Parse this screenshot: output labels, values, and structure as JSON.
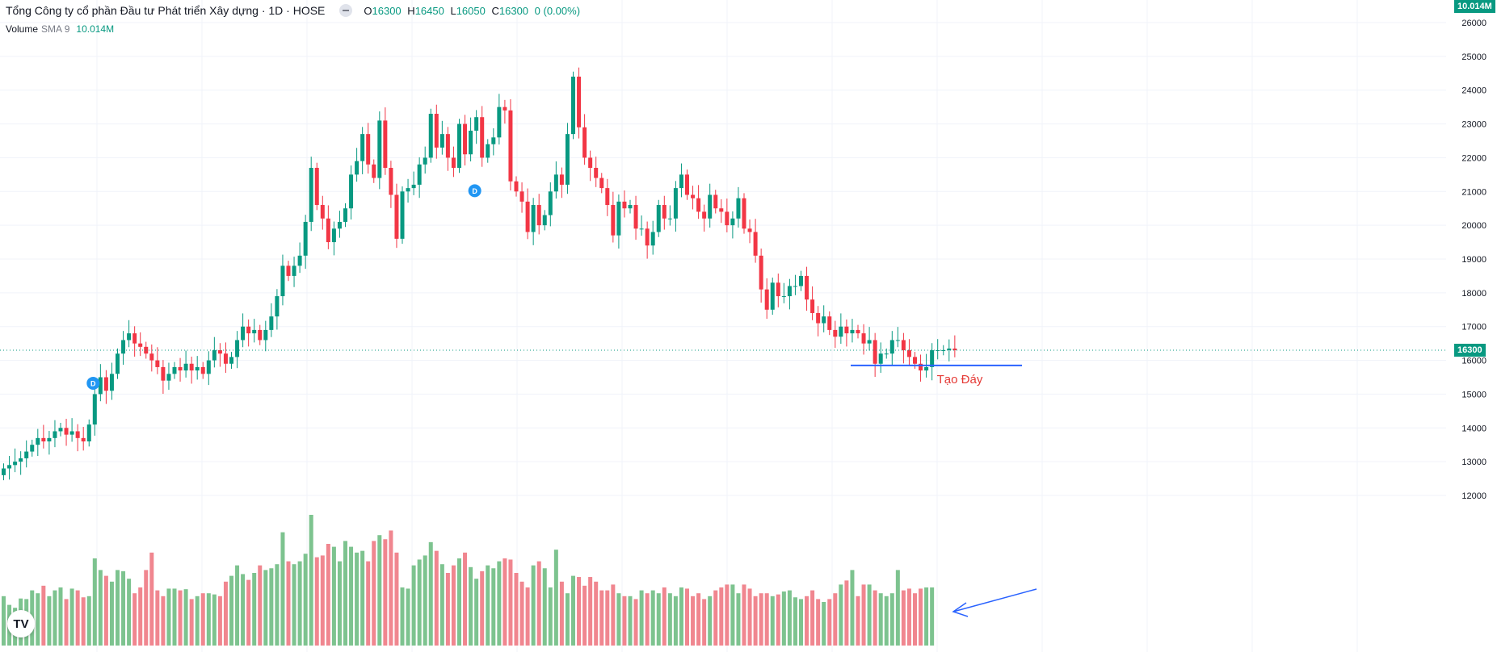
{
  "header": {
    "title": "Tổng Công ty cổ phần Đầu tư Phát triển Xây dựng · 1D · HOSE",
    "ohlc": {
      "o_label": "O",
      "o": "16300",
      "h_label": "H",
      "h": "16450",
      "l_label": "L",
      "l": "16050",
      "c_label": "C",
      "c": "16300",
      "change": "0 (0.00%)"
    }
  },
  "volume_legend": {
    "label": "Volume",
    "sma": "SMA 9",
    "value": "10.014M"
  },
  "price_tag": "16300",
  "volume_tag": "10.014M",
  "annotation": {
    "text": "Tạo Đáy"
  },
  "dividend_marker": "D",
  "logo": "TV",
  "colors": {
    "up": "#089981",
    "down": "#F23645",
    "vol_up": "#7DC38F",
    "vol_down": "#F0868F",
    "annotation": "#2962FF",
    "annotation_text": "#E53935"
  },
  "chart_data": {
    "type": "candlestick",
    "y_axis_ticks": [
      26000,
      25000,
      24000,
      23000,
      22000,
      21000,
      20000,
      19000,
      18000,
      17000,
      16000,
      15000,
      14000,
      13000,
      12000
    ],
    "ylim": [
      11400,
      26300
    ],
    "last_close": 16300,
    "support_level": 15850,
    "series": [
      {
        "name": "Price",
        "close": [
          12800,
          12900,
          13000,
          13100,
          13300,
          13500,
          13700,
          13600,
          13700,
          13900,
          14000,
          13800,
          13900,
          13700,
          13600,
          14100,
          15000,
          15500,
          15100,
          15600,
          16200,
          16600,
          16800,
          16500,
          16400,
          16200,
          16000,
          15800,
          15400,
          15600,
          15800,
          15700,
          15900,
          15700,
          15800,
          15600,
          16000,
          16300,
          16200,
          15900,
          16100,
          16600,
          17000,
          16800,
          16900,
          16600,
          16900,
          17300,
          17900,
          18800,
          18500,
          18800,
          19100,
          20100,
          21700,
          20600,
          20200,
          19500,
          19900,
          20100,
          20500,
          21500,
          21900,
          22700,
          21800,
          21400,
          23100,
          21700,
          20900,
          19600,
          21000,
          21100,
          21200,
          21800,
          22000,
          23300,
          22300,
          22700,
          22000,
          21700,
          23000,
          22100,
          22800,
          23200,
          22000,
          22400,
          22600,
          23500,
          23400,
          21300,
          21000,
          20700,
          19800,
          20600,
          20000,
          20300,
          21000,
          21500,
          21200,
          22700,
          24400,
          22900,
          22000,
          21700,
          21400,
          21100,
          20600,
          19700,
          20700,
          20500,
          20600,
          19900,
          19900,
          19400,
          19800,
          20600,
          20200,
          20200,
          21100,
          21500,
          20900,
          20800,
          20400,
          20200,
          20900,
          20500,
          20400,
          20000,
          20200,
          20800,
          19900,
          19800,
          19100,
          18100,
          17500,
          18300,
          17900,
          17900,
          18200,
          18200,
          18500,
          17800,
          17400,
          17100,
          17300,
          16900,
          16700,
          17000,
          16800,
          16900,
          16800,
          16500,
          16600,
          15900,
          16200,
          16200,
          16600,
          16600,
          16300,
          16100,
          15900,
          15700,
          15800,
          16300,
          16300,
          16300,
          16350,
          16300
        ],
        "volume_M": [
          8.5,
          7.0,
          6.5,
          8.1,
          8.0,
          9.5,
          9.0,
          10.3,
          8.5,
          9.5,
          10.0,
          8.0,
          9.8,
          9.5,
          8.3,
          8.5,
          15.0,
          13.0,
          12.0,
          11.0,
          13.0,
          12.8,
          11.5,
          9.0,
          10.0,
          13.0,
          16.0,
          9.5,
          8.5,
          9.8,
          9.8,
          9.5,
          9.7,
          8.0,
          8.5,
          9.0,
          9.0,
          8.8,
          8.5,
          11.0,
          12.0,
          13.8,
          12.3,
          11.3,
          12.5,
          13.8,
          13.0,
          13.3,
          14.0,
          19.5,
          14.5,
          14.0,
          14.5,
          15.8,
          22.5,
          15.2,
          15.5,
          17.5,
          17.0,
          14.5,
          18.0,
          17.0,
          16.0,
          16.3,
          14.5,
          18.0,
          19.0,
          18.3,
          19.8,
          16.0,
          10.0,
          9.8,
          13.8,
          14.8,
          15.5,
          17.8,
          16.3,
          14.0,
          12.5,
          13.8,
          15.0,
          16.0,
          13.5,
          11.5,
          12.8,
          13.8,
          13.3,
          14.5,
          15.0,
          14.8,
          12.5,
          11.0,
          10.0,
          13.8,
          14.5,
          13.3,
          10.0,
          16.5,
          11.0,
          9.0,
          12.0,
          11.8,
          10.3,
          11.8,
          11.0,
          9.5,
          9.5,
          10.5,
          9.0,
          8.5,
          8.5,
          8.0,
          9.5,
          9.0,
          9.5,
          9.0,
          10.0,
          9.0,
          8.5,
          10.0,
          9.8,
          8.5,
          9.0,
          8.0,
          8.5,
          9.5,
          10.0,
          10.5,
          10.5,
          9.0,
          10.5,
          9.8,
          8.5,
          9.0,
          9.0,
          8.5,
          8.8,
          9.3,
          9.5,
          8.3,
          8.0,
          8.5,
          9.5,
          8.0,
          7.5,
          8.0,
          9.0,
          10.5,
          11.2,
          13.0,
          8.5,
          10.5,
          10.5,
          9.5,
          9.0,
          8.5,
          9.0,
          13.0,
          9.5,
          9.8,
          9.0,
          9.8,
          10.0,
          10.0
        ]
      }
    ]
  }
}
